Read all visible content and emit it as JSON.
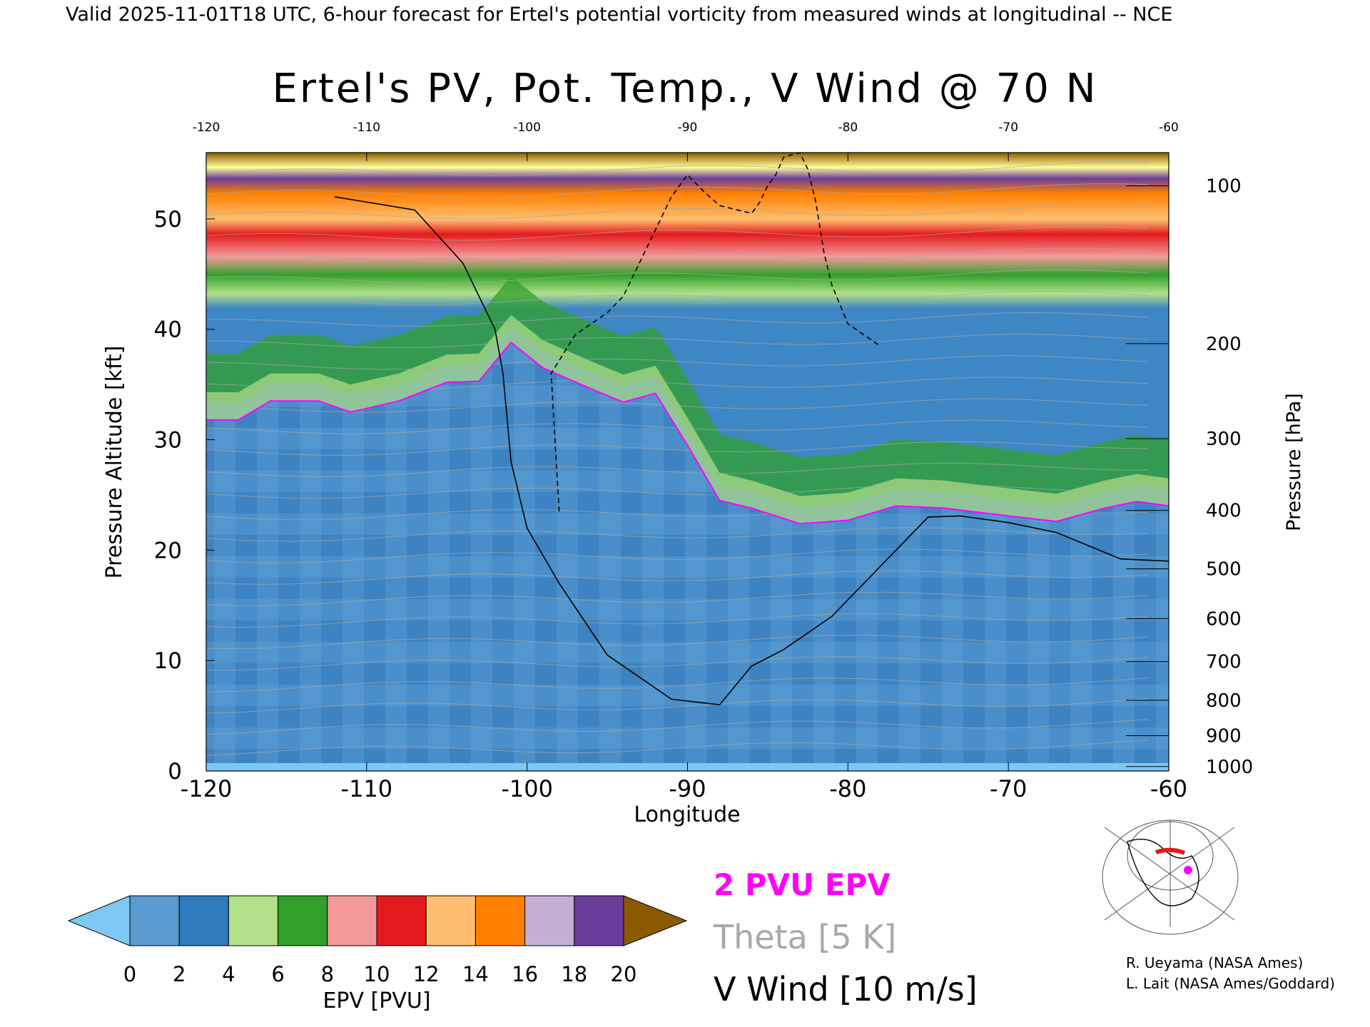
{
  "header": "Valid 2025-11-01T18 UTC, 6-hour forecast for Ertel's potential vorticity from measured winds at longitudinal -- NCE",
  "chart_data": {
    "type": "heatmap",
    "title": "Ertel's PV, Pot. Temp., V Wind @ 70 N",
    "xlabel": "Longitude",
    "ylabel": "Pressure Altitude [kft]",
    "ylabel_right": "Pressure [hPa]",
    "xlim": [
      -120,
      -60
    ],
    "ylim": [
      0,
      56
    ],
    "x_ticks": [
      "-120",
      "-110",
      "-100",
      "-90",
      "-80",
      "-70",
      "-60"
    ],
    "top_ticks": [
      "-120",
      "-110",
      "-100",
      "-90",
      "-80",
      "-70",
      "-60"
    ],
    "y_ticks": [
      "0",
      "10",
      "20",
      "30",
      "40",
      "50"
    ],
    "pressure_ticks": [
      {
        "label": "100",
        "kft": 53
      },
      {
        "label": "200",
        "kft": 38.7
      },
      {
        "label": "300",
        "kft": 30.1
      },
      {
        "label": "400",
        "kft": 23.6
      },
      {
        "label": "500",
        "kft": 18.3
      },
      {
        "label": "600",
        "kft": 13.8
      },
      {
        "label": "700",
        "kft": 9.9
      },
      {
        "label": "800",
        "kft": 6.4
      },
      {
        "label": "900",
        "kft": 3.2
      },
      {
        "label": "1000",
        "kft": 0.4
      }
    ],
    "grid": false,
    "series": [
      {
        "name": "2 PVU EPV",
        "color": "#ff00ff",
        "x": [
          -120,
          -118,
          -116,
          -113,
          -111,
          -108,
          -105,
          -103,
          -101,
          -99,
          -96,
          -94,
          -92,
          -90,
          -88,
          -86,
          -83,
          -80,
          -77,
          -74,
          -70,
          -67,
          -64,
          -62,
          -60
        ],
        "y": [
          31.8,
          31.8,
          33.5,
          33.5,
          32.5,
          33.5,
          35.2,
          35.3,
          38.8,
          36.5,
          34.6,
          33.4,
          34.2,
          29.5,
          24.5,
          23.8,
          22.4,
          22.7,
          24.0,
          23.8,
          23.1,
          22.6,
          23.8,
          24.4,
          24.0
        ]
      },
      {
        "name": "V Wind 0 contour",
        "color": "#000000",
        "x": [
          -112,
          -107,
          -104,
          -102,
          -101.5,
          -101,
          -100,
          -98,
          -95,
          -91,
          -88,
          -86,
          -84,
          -81,
          -78,
          -75,
          -73,
          -70,
          -67,
          -63,
          -60
        ],
        "y": [
          52,
          50.8,
          46,
          40,
          36,
          28,
          22,
          17,
          10.5,
          6.5,
          6,
          9.5,
          11,
          14,
          18.5,
          23,
          23.1,
          22.5,
          21.6,
          19.2,
          19.0
        ]
      },
      {
        "name": "V Wind -10 contour",
        "color": "#000000",
        "x": [
          -98,
          -98.5,
          -97,
          -96,
          -95,
          -94,
          -92,
          -91,
          -90,
          -89,
          -88,
          -86,
          -85.5,
          -85,
          -84.5,
          -84,
          -83,
          -82.5,
          -82,
          -81.5,
          -81,
          -80,
          -79,
          -78
        ],
        "y": [
          23.5,
          36,
          39.5,
          40.5,
          41.5,
          43,
          49,
          52,
          54,
          52.5,
          51.2,
          50.5,
          51.5,
          53,
          54,
          55.6,
          56,
          54.5,
          51.5,
          47,
          44,
          40.5,
          39.5,
          38.5
        ]
      }
    ],
    "pv_colorbar": {
      "label": "EPV [PVU]",
      "ticks": [
        "0",
        "2",
        "4",
        "6",
        "8",
        "10",
        "12",
        "14",
        "16",
        "18",
        "20"
      ],
      "colors": [
        "#5a9bd1",
        "#2f7bbd",
        "#b3e08a",
        "#31a02b",
        "#f49a9a",
        "#e41a1c",
        "#fdbf6f",
        "#ff7f00",
        "#c5b0d5",
        "#6a3d9a",
        "#ffff99"
      ],
      "under_color": "#7ec8f4",
      "over_color": "#8b5a00"
    }
  },
  "legend": {
    "pv": "2 PVU EPV",
    "theta": "Theta [5 K]",
    "wind": "V Wind [10 m/s]",
    "pv_color": "#ff00ff",
    "theta_color": "#a8a8a8",
    "wind_color": "#000000"
  },
  "credits": {
    "line1": "R. Ueyama (NASA Ames)",
    "line2": "L. Lait (NASA Ames/Goddard)"
  }
}
